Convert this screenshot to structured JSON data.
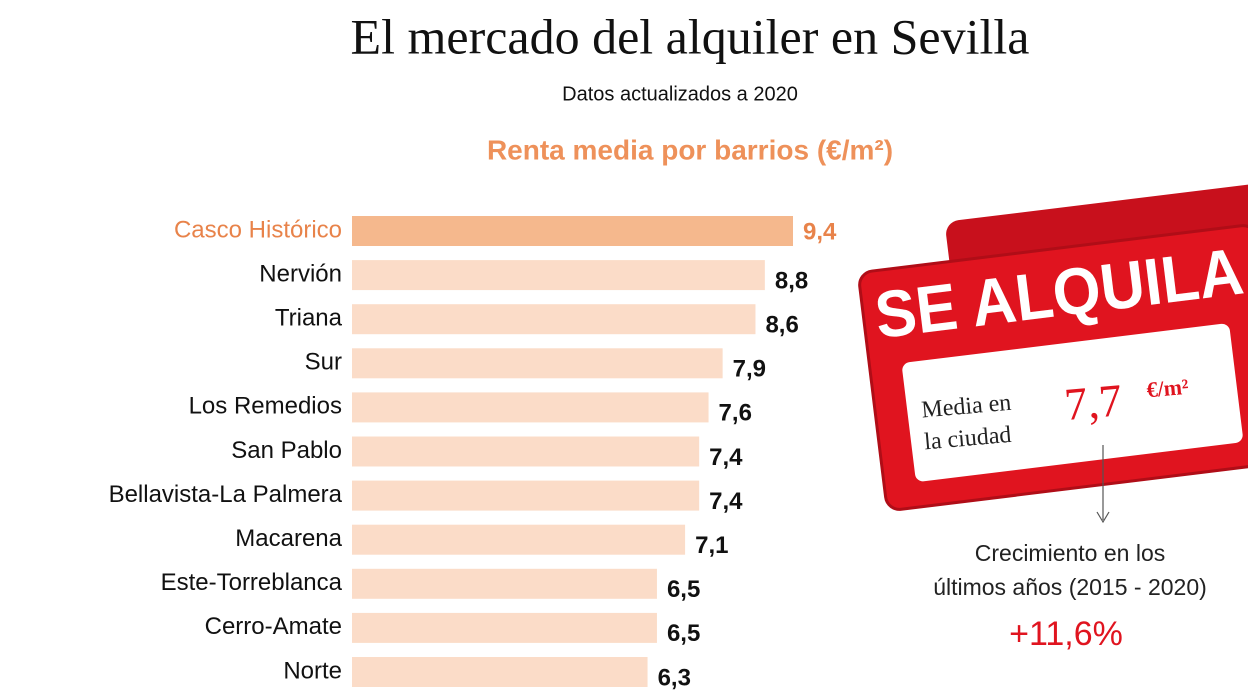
{
  "chart_data": {
    "type": "bar",
    "title": "El mercado del alquiler en Sevilla",
    "subtitle": "Datos actualizados a 2020",
    "chart_title": "Renta media por barrios (€/m²)",
    "categories": [
      "Casco Histórico",
      "Nervión",
      "Triana",
      "Sur",
      "Los Remedios",
      "San Pablo",
      "Bellavista-La Palmera",
      "Macarena",
      "Este-Torreblanca",
      "Cerro-Amate",
      "Norte"
    ],
    "values": [
      9.4,
      8.8,
      8.6,
      7.9,
      7.6,
      7.4,
      7.4,
      7.1,
      6.5,
      6.5,
      6.3
    ],
    "value_labels": [
      "9,4",
      "8,8",
      "8,6",
      "7,9",
      "7,6",
      "7,4",
      "7,4",
      "7,1",
      "6,5",
      "6,5",
      "6,3"
    ],
    "colors": [
      "#f5b88d",
      "#fbdcc8",
      "#fbdcc8",
      "#fbdcc8",
      "#fbdcc8",
      "#fbdcc8",
      "#fbdcc8",
      "#fbdcc8",
      "#fbdcc8",
      "#fbdcc8",
      "#fbdcc8"
    ],
    "label_colors": [
      "#e8834a",
      "#111111",
      "#111111",
      "#111111",
      "#111111",
      "#111111",
      "#111111",
      "#111111",
      "#111111",
      "#111111",
      "#111111"
    ],
    "annotations": {
      "sign_text": "SE ALQUILA",
      "city_label": [
        "Media en",
        "la ciudad"
      ],
      "city_value": "7,7",
      "city_unit": "€/m²",
      "growth_label": [
        "Crecimiento en los",
        "últimos años (2015 - 2020)"
      ],
      "growth_value": "+11,6%"
    }
  }
}
